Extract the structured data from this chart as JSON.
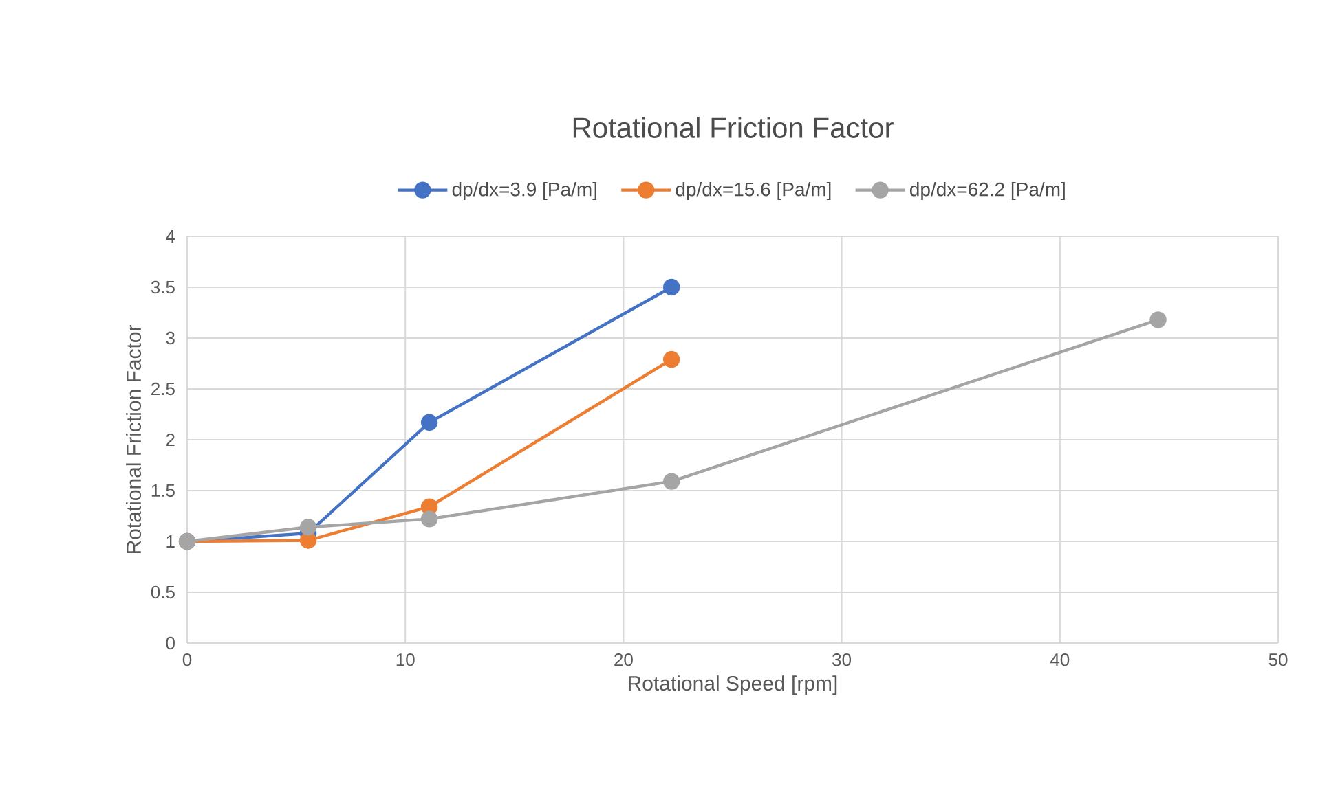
{
  "chart_data": {
    "type": "line",
    "title": "Rotational Friction Factor",
    "xlabel": "Rotational Speed [rpm]",
    "ylabel": "Rotational Friction Factor",
    "series": [
      {
        "name": "dp/dx=3.9 [Pa/m]",
        "color": "#4472c4",
        "x": [
          0,
          5.55,
          11.1,
          22.2
        ],
        "values": [
          1.0,
          1.08,
          2.17,
          3.5
        ]
      },
      {
        "name": "dp/dx=15.6 [Pa/m]",
        "color": "#ed7d31",
        "x": [
          0,
          5.55,
          11.1,
          22.2
        ],
        "values": [
          1.0,
          1.01,
          1.34,
          2.79
        ]
      },
      {
        "name": "dp/dx=62.2 [Pa/m]",
        "color": "#a5a5a5",
        "x": [
          0,
          5.55,
          11.1,
          22.2,
          44.5
        ],
        "values": [
          1.0,
          1.14,
          1.22,
          1.59,
          3.18
        ]
      }
    ],
    "xlim": [
      0,
      50
    ],
    "xticks": [
      0,
      10,
      20,
      30,
      40,
      50
    ],
    "ylim": [
      0,
      4
    ],
    "yticks": [
      0,
      0.5,
      1,
      1.5,
      2,
      2.5,
      3,
      3.5,
      4
    ],
    "grid": true,
    "legend": "top",
    "marker": "circle",
    "line_style": "solid"
  }
}
